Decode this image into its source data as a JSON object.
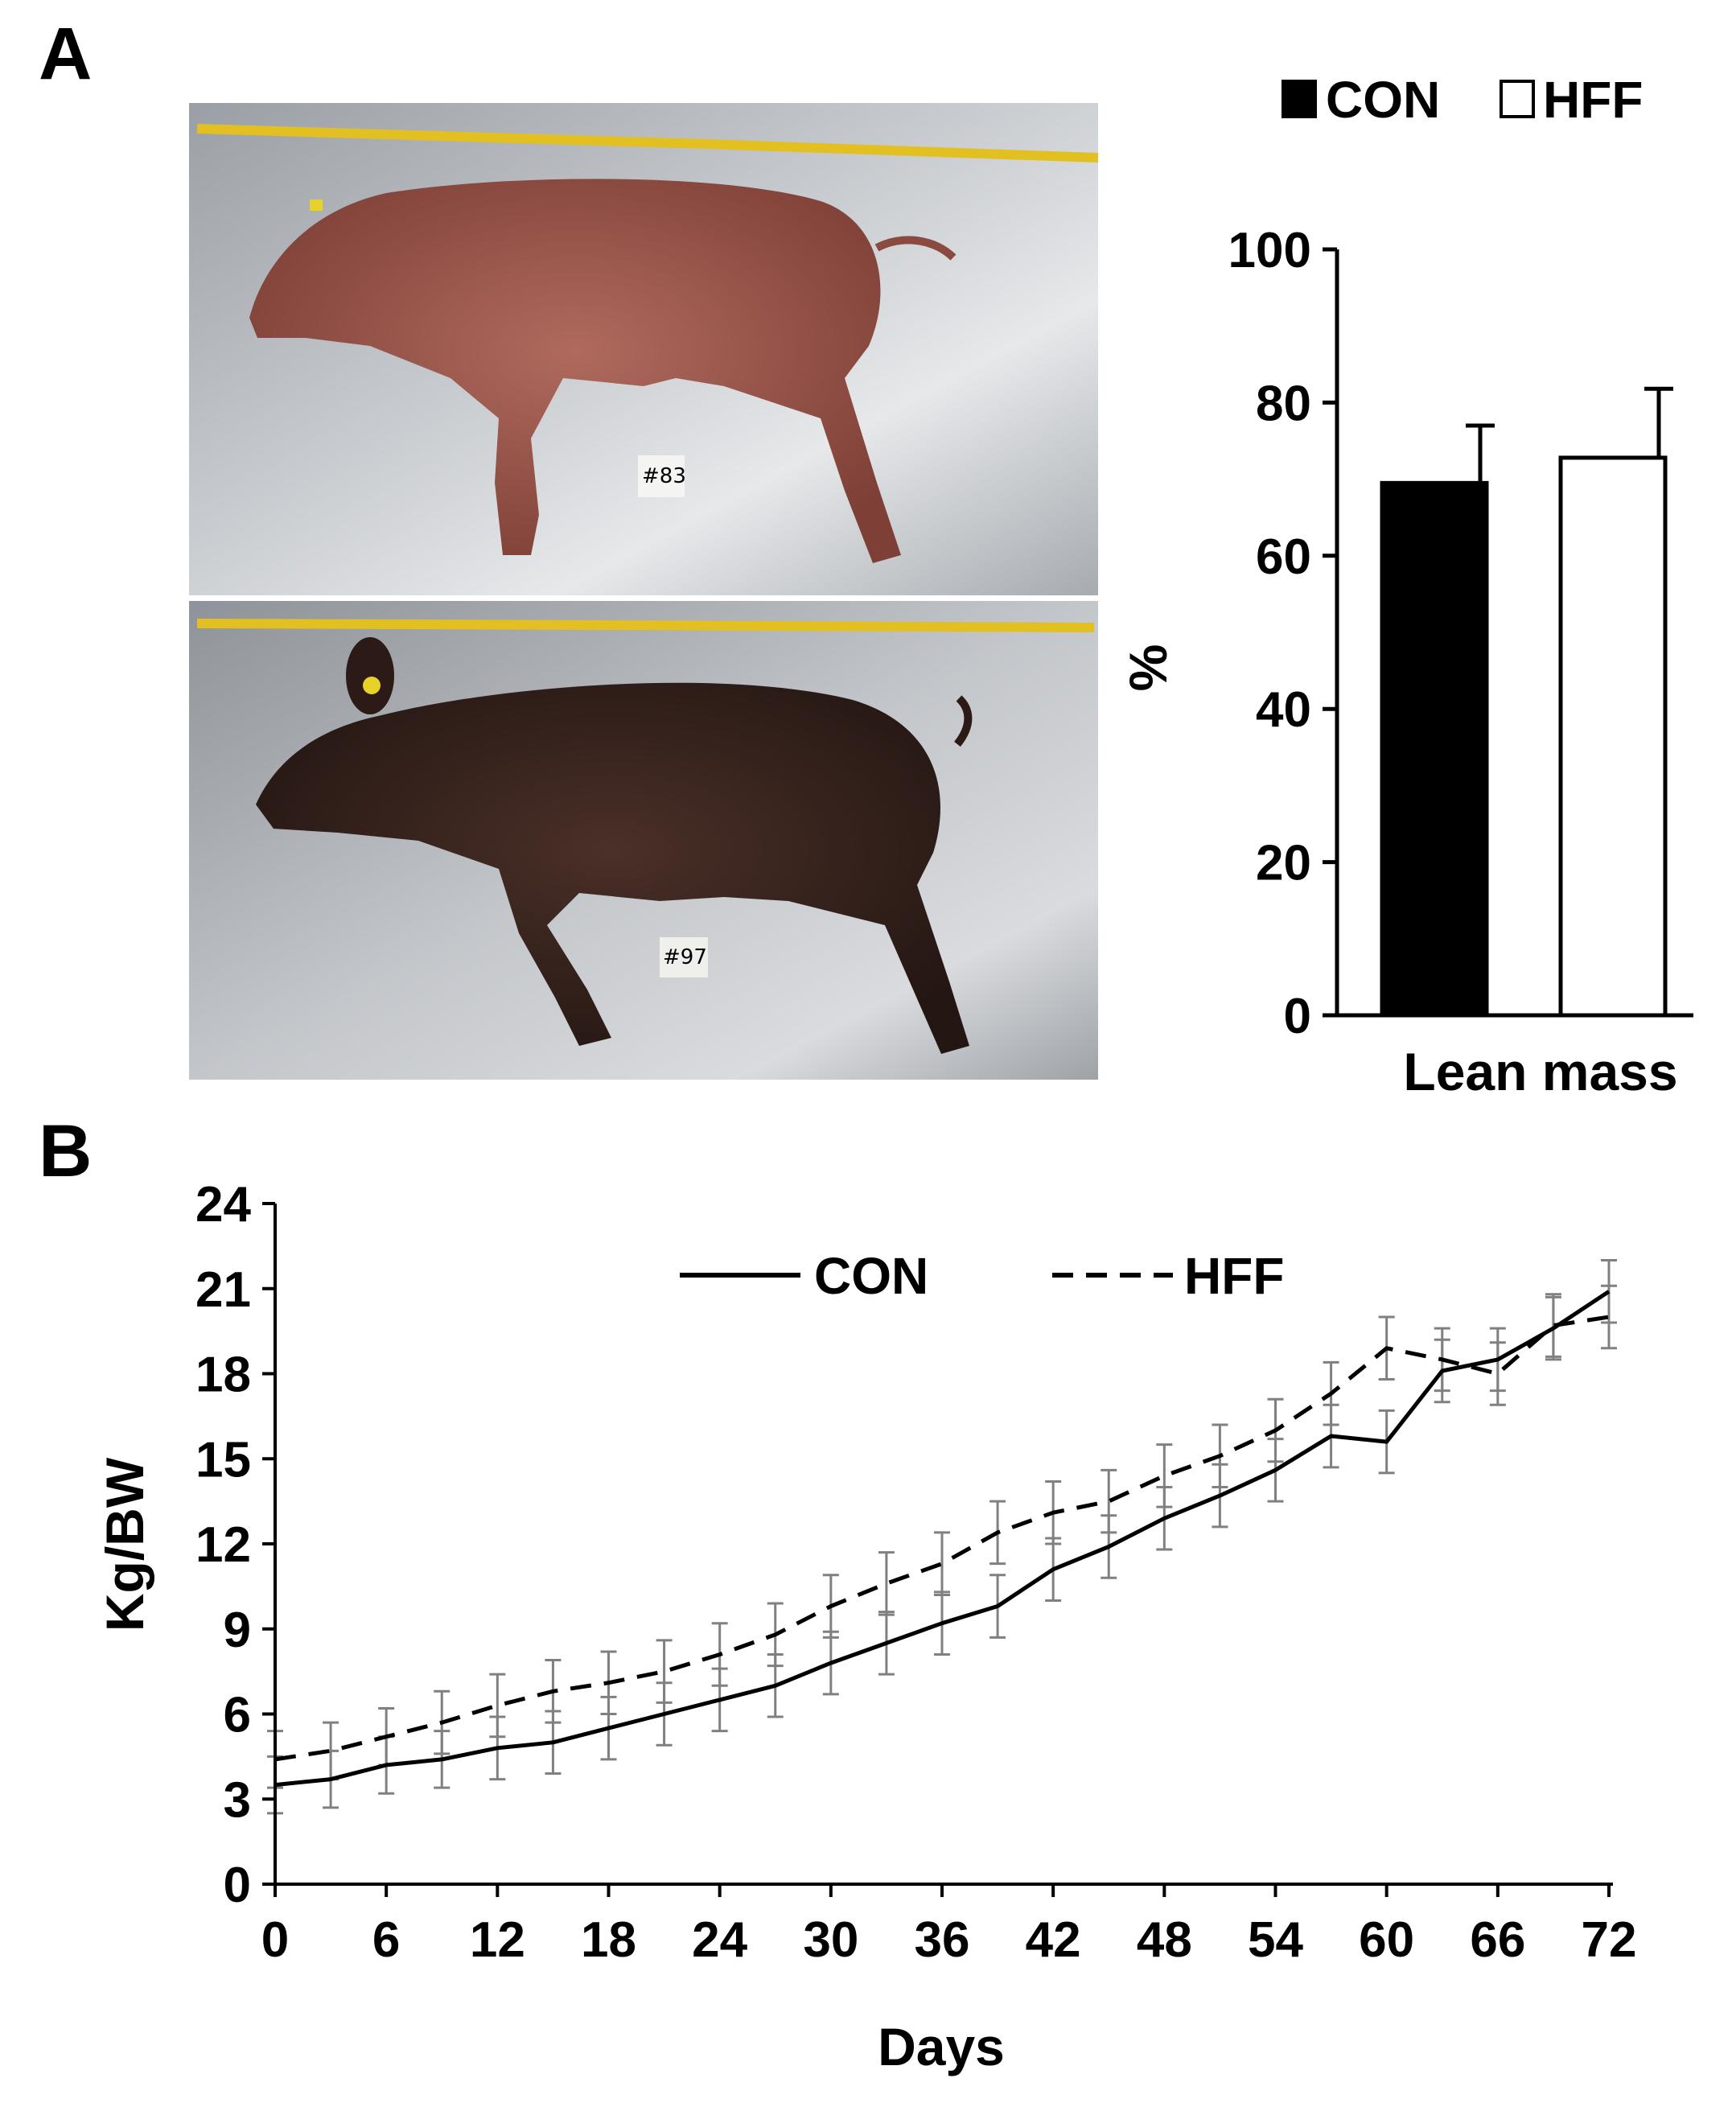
{
  "panels": {
    "a": "A",
    "b": "B"
  },
  "photos": {
    "top_tag": "#83",
    "bottom_tag": "#97"
  },
  "colors": {
    "con": "#000000",
    "hff": "#ffffff",
    "axis": "#000000",
    "errorbar_b": "#808080"
  },
  "chart_data": [
    {
      "type": "bar",
      "panel": "A",
      "categories": [
        "Lean mass"
      ],
      "series": [
        {
          "name": "CON",
          "values": [
            69.5
          ],
          "error": [
            7.5
          ]
        },
        {
          "name": "HFF",
          "values": [
            72.8
          ],
          "error": [
            9.0
          ]
        }
      ],
      "xlabel": "Lean mass",
      "ylabel": "%",
      "ylim": [
        0,
        100
      ],
      "yticks": [
        "0",
        "20",
        "40",
        "60",
        "80",
        "100"
      ],
      "legend_position": "top"
    },
    {
      "type": "line",
      "panel": "B",
      "x": [
        0,
        3,
        6,
        9,
        12,
        15,
        18,
        21,
        24,
        27,
        30,
        33,
        36,
        39,
        42,
        45,
        48,
        51,
        54,
        57,
        60,
        63,
        66,
        69,
        72
      ],
      "series": [
        {
          "name": "CON",
          "style": "solid",
          "values": [
            3.5,
            3.7,
            4.2,
            4.4,
            4.8,
            5.0,
            5.5,
            6.0,
            6.5,
            7.0,
            7.8,
            8.5,
            9.2,
            9.8,
            11.1,
            11.9,
            12.9,
            13.7,
            14.6,
            15.8,
            15.6,
            18.1,
            18.5,
            19.6,
            20.9
          ],
          "error": [
            1.0,
            1.0,
            1.0,
            1.0,
            1.1,
            1.1,
            1.1,
            1.1,
            1.1,
            1.1,
            1.1,
            1.1,
            1.1,
            1.1,
            1.1,
            1.1,
            1.1,
            1.1,
            1.1,
            1.1,
            1.1,
            1.1,
            1.1,
            1.1,
            1.1
          ]
        },
        {
          "name": "HFF",
          "style": "dashed",
          "values": [
            4.4,
            4.7,
            5.2,
            5.7,
            6.3,
            6.8,
            7.1,
            7.5,
            8.1,
            8.8,
            9.8,
            10.6,
            11.3,
            12.4,
            13.1,
            13.5,
            14.4,
            15.1,
            16.0,
            17.3,
            18.9,
            18.5,
            18.0,
            19.7,
            20.0
          ],
          "error": [
            1.0,
            1.0,
            1.0,
            1.1,
            1.1,
            1.1,
            1.1,
            1.1,
            1.1,
            1.1,
            1.1,
            1.1,
            1.1,
            1.1,
            1.1,
            1.1,
            1.1,
            1.1,
            1.1,
            1.1,
            1.1,
            1.1,
            1.1,
            1.1,
            1.1
          ]
        }
      ],
      "xlabel": "Days",
      "ylabel": "Kg/BW",
      "xlim": [
        0,
        72
      ],
      "ylim": [
        0,
        24
      ],
      "xticks": [
        "0",
        "6",
        "12",
        "18",
        "24",
        "30",
        "36",
        "42",
        "48",
        "54",
        "60",
        "66",
        "72"
      ],
      "yticks": [
        "0",
        "3",
        "6",
        "9",
        "12",
        "15",
        "18",
        "21",
        "24"
      ],
      "legend_position": "top"
    }
  ]
}
